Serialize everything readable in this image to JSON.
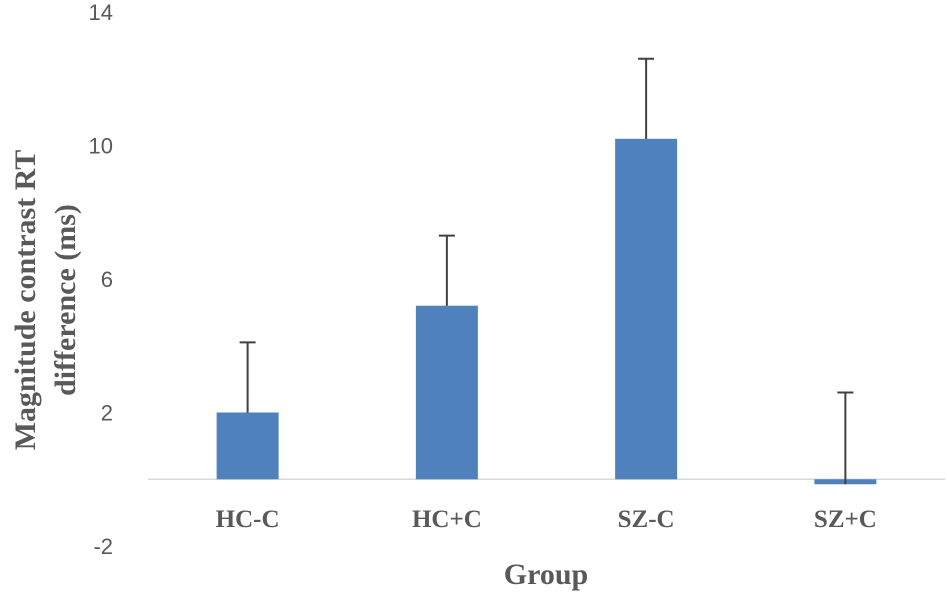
{
  "chart_data": {
    "type": "bar",
    "title": "",
    "xlabel": "Group",
    "ylabel_line1": "Magnitude contrast RT",
    "ylabel_line2": "difference (ms)",
    "categories": [
      "HC-C",
      "HC+C",
      "SZ-C",
      "SZ+C"
    ],
    "values": [
      2.0,
      5.2,
      10.2,
      -0.15
    ],
    "error_upper": [
      4.1,
      7.3,
      12.6,
      2.6
    ],
    "yticks": [
      -2,
      2,
      6,
      10,
      14
    ],
    "ylim": [
      -2,
      14
    ],
    "grid": false,
    "legend": "none",
    "colors": {
      "bar": "#4f81bd",
      "error_bar": "#404040",
      "zero_line": "#d9d9d9"
    }
  }
}
